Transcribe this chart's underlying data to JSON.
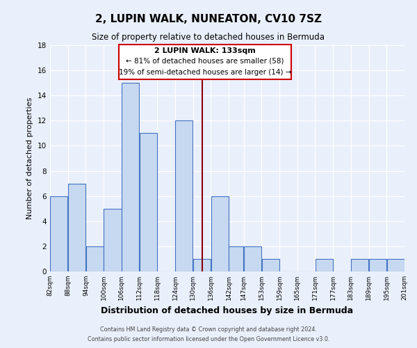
{
  "title": "2, LUPIN WALK, NUNEATON, CV10 7SZ",
  "subtitle": "Size of property relative to detached houses in Bermuda",
  "xlabel": "Distribution of detached houses by size in Bermuda",
  "ylabel": "Number of detached properties",
  "bar_color": "#c6d9f0",
  "bar_edge_color": "#4472c4",
  "bg_color": "#eaf0fb",
  "grid_color": "#ffffff",
  "annotation_box_color": "#cc0000",
  "vline_color": "#8b0000",
  "bins": [
    82,
    88,
    94,
    100,
    106,
    112,
    118,
    124,
    130,
    136,
    142,
    147,
    153,
    159,
    165,
    171,
    177,
    183,
    189,
    195,
    201
  ],
  "counts": [
    6,
    7,
    2,
    5,
    15,
    11,
    0,
    12,
    1,
    6,
    2,
    2,
    1,
    0,
    0,
    1,
    0,
    1,
    1,
    1
  ],
  "property_size": 133,
  "ylim": [
    0,
    18
  ],
  "yticks": [
    0,
    2,
    4,
    6,
    8,
    10,
    12,
    14,
    16,
    18
  ],
  "annotation_title": "2 LUPIN WALK: 133sqm",
  "annotation_line1": "← 81% of detached houses are smaller (58)",
  "annotation_line2": "19% of semi-detached houses are larger (14) →",
  "footer_line1": "Contains HM Land Registry data © Crown copyright and database right 2024.",
  "footer_line2": "Contains public sector information licensed under the Open Government Licence v3.0.",
  "tick_labels": [
    "82sqm",
    "88sqm",
    "94sqm",
    "100sqm",
    "106sqm",
    "112sqm",
    "118sqm",
    "124sqm",
    "130sqm",
    "136sqm",
    "142sqm",
    "147sqm",
    "153sqm",
    "159sqm",
    "165sqm",
    "171sqm",
    "177sqm",
    "183sqm",
    "189sqm",
    "195sqm",
    "201sqm"
  ]
}
